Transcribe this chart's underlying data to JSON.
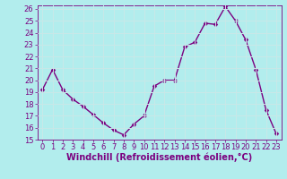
{
  "x": [
    0,
    1,
    2,
    3,
    4,
    5,
    6,
    7,
    8,
    9,
    10,
    11,
    12,
    13,
    14,
    15,
    16,
    17,
    18,
    19,
    20,
    21,
    22,
    23
  ],
  "y": [
    19.2,
    20.9,
    19.2,
    18.4,
    17.8,
    17.1,
    16.4,
    15.8,
    15.4,
    16.3,
    17.0,
    19.5,
    20.0,
    20.0,
    22.8,
    23.2,
    24.8,
    24.7,
    26.2,
    25.0,
    23.4,
    20.9,
    17.5,
    15.5
  ],
  "line_color": "#7b0080",
  "marker_color": "#7b0080",
  "bg_color": "#b2eded",
  "grid_color": "#c8e8e8",
  "xlabel": "Windchill (Refroidissement éolien,°C)",
  "ylim": [
    15,
    26
  ],
  "xlim_min": -0.5,
  "xlim_max": 23.5,
  "yticks": [
    15,
    16,
    17,
    18,
    19,
    20,
    21,
    22,
    23,
    24,
    25,
    26
  ],
  "xticks": [
    0,
    1,
    2,
    3,
    4,
    5,
    6,
    7,
    8,
    9,
    10,
    11,
    12,
    13,
    14,
    15,
    16,
    17,
    18,
    19,
    20,
    21,
    22,
    23
  ],
  "line_width": 1.0,
  "marker_size": 2.5,
  "tick_label_color": "#7b0080",
  "xlabel_color": "#7b0080",
  "xlabel_fontsize": 7.0,
  "tick_fontsize": 6.0,
  "spine_color": "#7b0080"
}
